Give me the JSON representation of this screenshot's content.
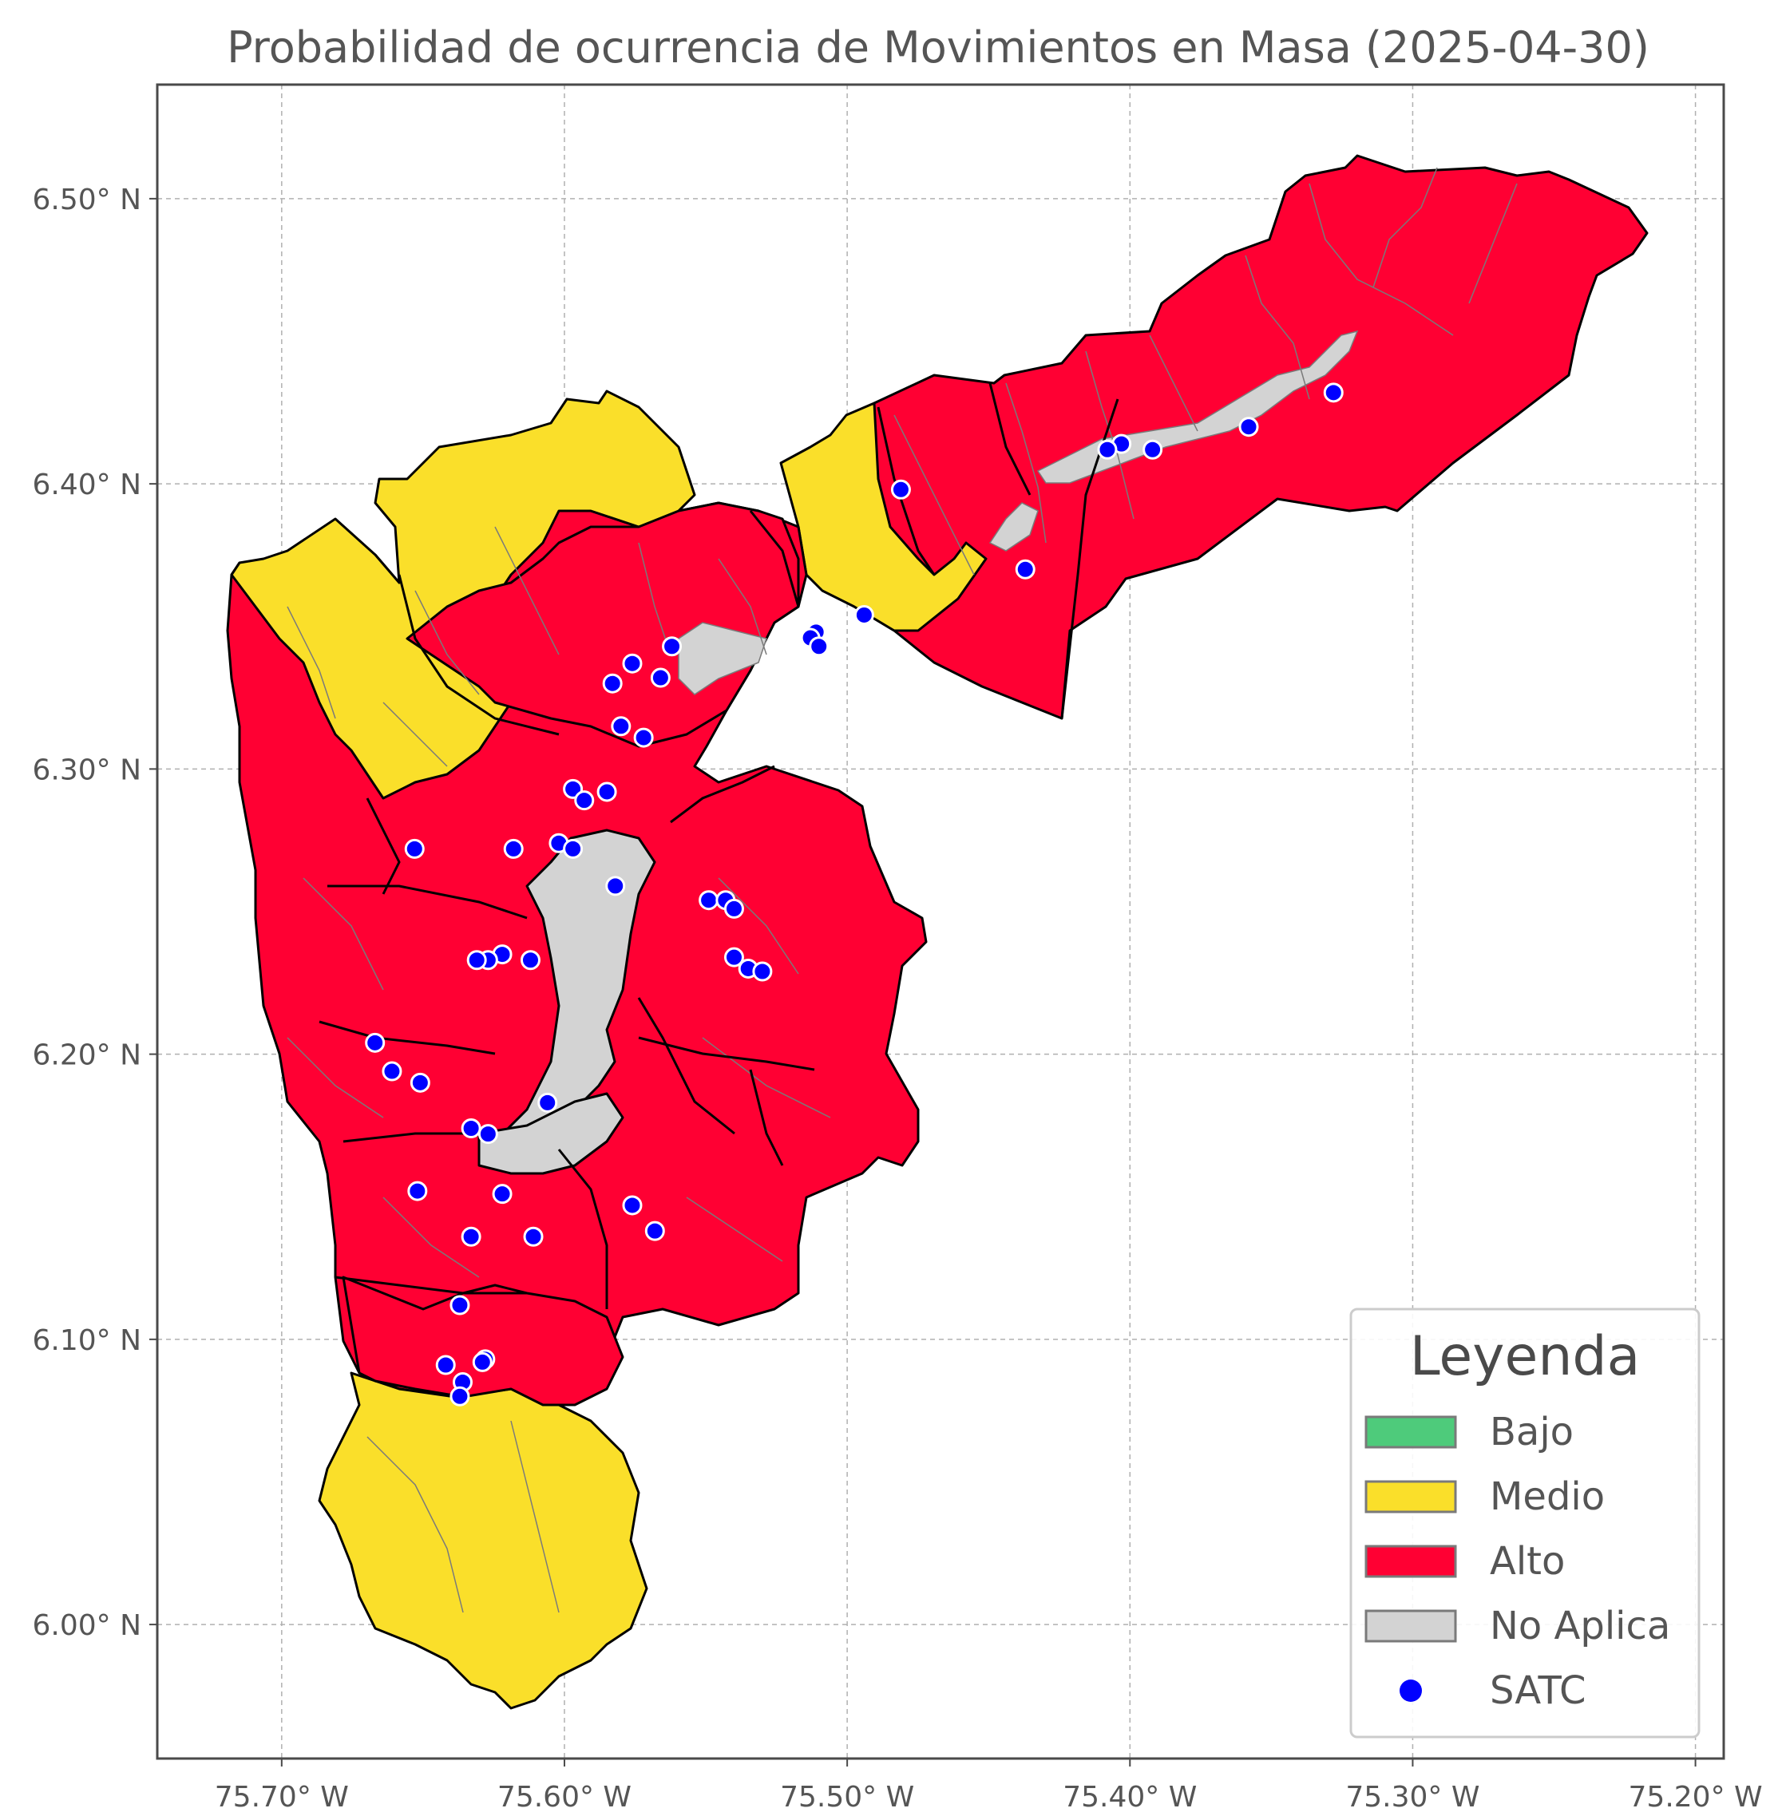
{
  "title": "Probabilidad de ocurrencia de Movimientos en Masa (2025-04-30)",
  "axes": {
    "x_ticks": [
      "75.70° W",
      "75.60° W",
      "75.50° W",
      "75.40° W",
      "75.30° W",
      "75.20° W"
    ],
    "y_ticks": [
      "6.50° N",
      "6.40° N",
      "6.30° N",
      "6.20° N",
      "6.10° N",
      "6.00° N"
    ],
    "x_range": [
      -75.744,
      -75.19
    ],
    "y_range": [
      5.953,
      6.54
    ],
    "grid": true
  },
  "colors": {
    "Bajo": "#4ecb7b",
    "Medio": "#fadf2a",
    "Alto": "#ff0033",
    "No Aplica": "#d3d3d3",
    "SATC": "#0000ff"
  },
  "legend": {
    "title": "Leyenda",
    "position": "lower-right",
    "items": [
      {
        "label": "Bajo",
        "color": "#4ecb7b",
        "kind": "patch"
      },
      {
        "label": "Medio",
        "color": "#fadf2a",
        "kind": "patch"
      },
      {
        "label": "Alto",
        "color": "#ff0033",
        "kind": "patch"
      },
      {
        "label": "No Aplica",
        "color": "#d3d3d3",
        "kind": "patch"
      },
      {
        "label": "SATC",
        "color": "#0000ff",
        "kind": "point"
      }
    ]
  },
  "satc_points": [
    [
      -75.328,
      6.432
    ],
    [
      -75.358,
      6.42
    ],
    [
      -75.392,
      6.412
    ],
    [
      -75.403,
      6.414
    ],
    [
      -75.408,
      6.412
    ],
    [
      -75.481,
      6.398
    ],
    [
      -75.437,
      6.37
    ],
    [
      -75.494,
      6.354
    ],
    [
      -75.511,
      6.348
    ],
    [
      -75.513,
      6.346
    ],
    [
      -75.51,
      6.343
    ],
    [
      -75.562,
      6.343
    ],
    [
      -75.566,
      6.332
    ],
    [
      -75.576,
      6.337
    ],
    [
      -75.583,
      6.33
    ],
    [
      -75.58,
      6.315
    ],
    [
      -75.572,
      6.311
    ],
    [
      -75.597,
      6.293
    ],
    [
      -75.593,
      6.289
    ],
    [
      -75.585,
      6.292
    ],
    [
      -75.653,
      6.272
    ],
    [
      -75.618,
      6.272
    ],
    [
      -75.602,
      6.274
    ],
    [
      -75.597,
      6.272
    ],
    [
      -75.582,
      6.259
    ],
    [
      -75.549,
      6.254
    ],
    [
      -75.543,
      6.254
    ],
    [
      -75.54,
      6.251
    ],
    [
      -75.54,
      6.234
    ],
    [
      -75.535,
      6.23
    ],
    [
      -75.53,
      6.229
    ],
    [
      -75.622,
      6.235
    ],
    [
      -75.627,
      6.233
    ],
    [
      -75.631,
      6.233
    ],
    [
      -75.612,
      6.233
    ],
    [
      -75.667,
      6.204
    ],
    [
      -75.661,
      6.194
    ],
    [
      -75.651,
      6.19
    ],
    [
      -75.606,
      6.183
    ],
    [
      -75.633,
      6.174
    ],
    [
      -75.627,
      6.172
    ],
    [
      -75.652,
      6.152
    ],
    [
      -75.622,
      6.151
    ],
    [
      -75.576,
      6.147
    ],
    [
      -75.568,
      6.138
    ],
    [
      -75.611,
      6.136
    ],
    [
      -75.633,
      6.136
    ],
    [
      -75.637,
      6.112
    ],
    [
      -75.642,
      6.091
    ],
    [
      -75.628,
      6.093
    ],
    [
      -75.636,
      6.085
    ],
    [
      -75.637,
      6.08
    ],
    [
      -75.629,
      6.092
    ]
  ]
}
